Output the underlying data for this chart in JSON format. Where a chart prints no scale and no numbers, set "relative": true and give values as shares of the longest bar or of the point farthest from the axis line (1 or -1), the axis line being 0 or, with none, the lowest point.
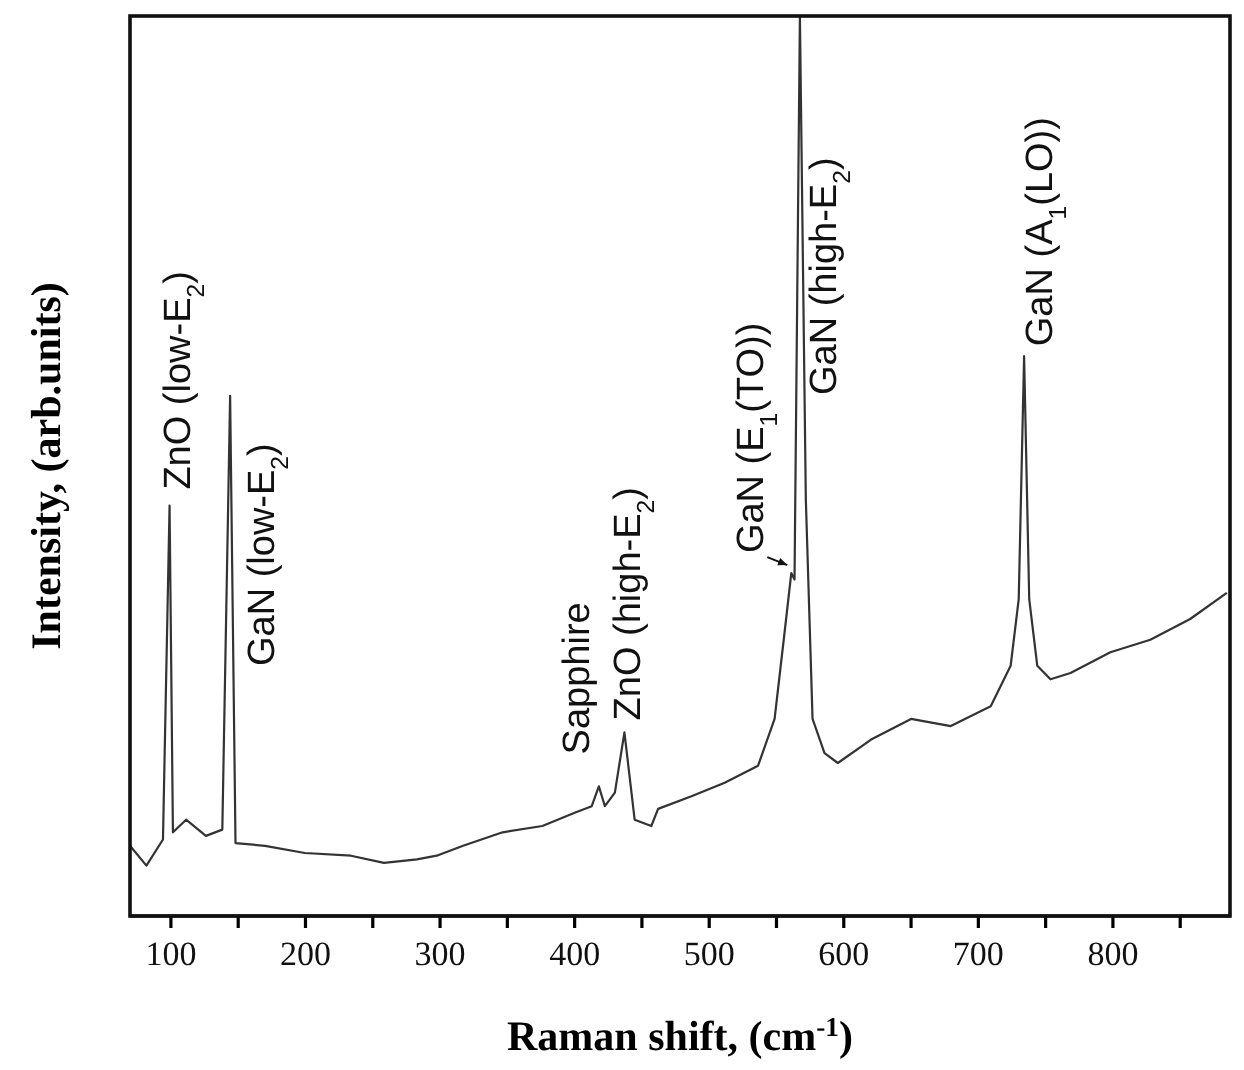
{
  "chart_data": {
    "type": "line",
    "relative": true,
    "xlabel": "Raman shift, (cm$^{-1}$)",
    "ylabel": "Intensity, (arb.units)",
    "x": [
      69.6,
      81.8,
      94.1,
      99,
      101.5,
      111.3,
      126,
      138.2,
      144,
      148,
      170,
      199.5,
      233.8,
      258.3,
      282.8,
      297.5,
      317.1,
      346.5,
      376,
      400.5,
      412.7,
      418,
      422.5,
      429.9,
      437,
      444.6,
      457,
      462,
      486.8,
      511.5,
      536.3,
      548.6,
      556,
      561,
      563.4,
      567.4,
      571.8,
      576.8,
      585.7,
      595.6,
      620.3,
      650,
      679.5,
      709.2,
      724,
      730,
      734,
      737.8,
      743.8,
      753.6,
      768.5,
      798.1,
      827.8,
      857.4,
      884.6
    ],
    "values": [
      0.078,
      0.056,
      0.085,
      0.456,
      0.093,
      0.107,
      0.089,
      0.096,
      0.578,
      0.081,
      0.078,
      0.07,
      0.067,
      0.059,
      0.063,
      0.067,
      0.078,
      0.093,
      0.1,
      0.115,
      0.122,
      0.144,
      0.122,
      0.137,
      0.204,
      0.107,
      0.1,
      0.119,
      0.133,
      0.148,
      0.167,
      0.219,
      0.315,
      0.381,
      0.374,
      1,
      0.463,
      0.219,
      0.181,
      0.17,
      0.196,
      0.219,
      0.211,
      0.233,
      0.278,
      0.352,
      0.622,
      0.352,
      0.278,
      0.263,
      0.27,
      0.293,
      0.307,
      0.33,
      0.359
    ],
    "color": "#333333",
    "xlim": [
      69.6,
      887
    ],
    "xticks": [
      100,
      {
        "value": 150,
        "label": null
      },
      200,
      {
        "value": 250,
        "label": null
      },
      300,
      {
        "value": 350,
        "label": null
      },
      400,
      {
        "value": 450,
        "label": null
      },
      500,
      {
        "value": 550,
        "label": null
      },
      600,
      {
        "value": 650,
        "label": null
      },
      700,
      {
        "value": 750,
        "label": null
      },
      800,
      {
        "value": 850,
        "label": null
      }
    ],
    "annotations": [
      {
        "text": "ZnO (low-E$_{2}$)",
        "x": 99,
        "y": 0.456
      },
      {
        "text": "GaN (low-E$_{2}$)",
        "x": 144,
        "y": 0.3
      },
      {
        "text": "Sapphire",
        "x": 418,
        "y": 0.144
      },
      {
        "text": "ZnO (high-E$_{2}$)",
        "x": 437,
        "y": 0.204
      },
      {
        "text": "GaN (E$_{1}$(TO))",
        "x": 561,
        "y": 0.381
      },
      {
        "text": "GaN (high-E$_{2}$)",
        "x": 567.4,
        "y": 0.59
      },
      {
        "text": "GaN (A$_{1}$(LO))",
        "x": 734,
        "y": 0.622
      }
    ]
  }
}
